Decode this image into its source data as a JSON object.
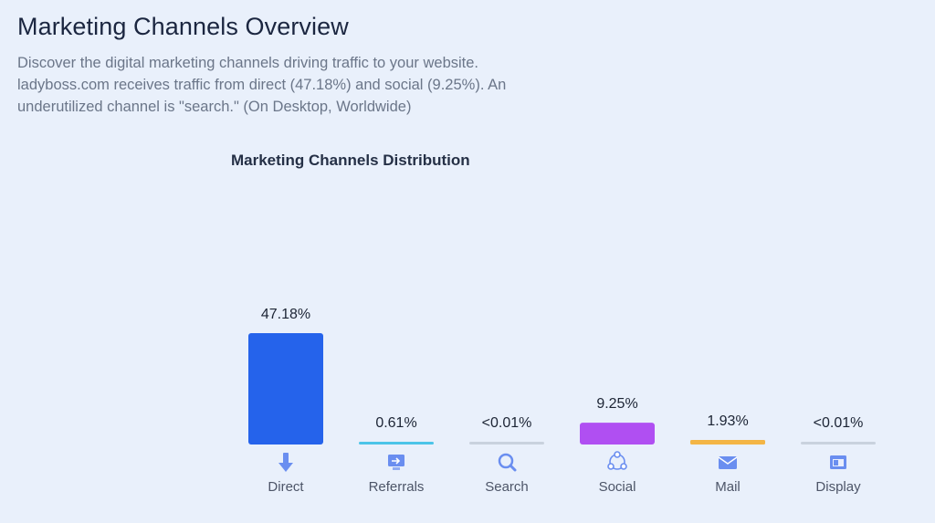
{
  "header": {
    "title": "Marketing Channels Overview",
    "description": "Discover the digital marketing channels driving traffic to your website. ladyboss.com receives traffic from direct (47.18%) and social (9.25%). An underutilized channel is \"search.\" (On Desktop, Worldwide)"
  },
  "chart_data": {
    "type": "bar",
    "title": "Marketing Channels Distribution",
    "categories": [
      "Direct",
      "Referrals",
      "Search",
      "Social",
      "Mail",
      "Display"
    ],
    "values": [
      47.18,
      0.61,
      0.01,
      9.25,
      1.93,
      0.01
    ],
    "value_labels": [
      "47.18%",
      "0.61%",
      "<0.01%",
      "9.25%",
      "1.93%",
      "<0.01%"
    ],
    "colors": [
      "#2563eb",
      "#4cc4e8",
      "#c9d2de",
      "#b04ff2",
      "#f3b545",
      "#c9d2de"
    ],
    "icons": [
      "arrow-down-icon",
      "referral-monitor-icon",
      "search-magnifier-icon",
      "social-network-icon",
      "mail-envelope-icon",
      "display-ad-icon"
    ],
    "grid": false,
    "legend": "none",
    "ylim": [
      0,
      47.18
    ]
  }
}
